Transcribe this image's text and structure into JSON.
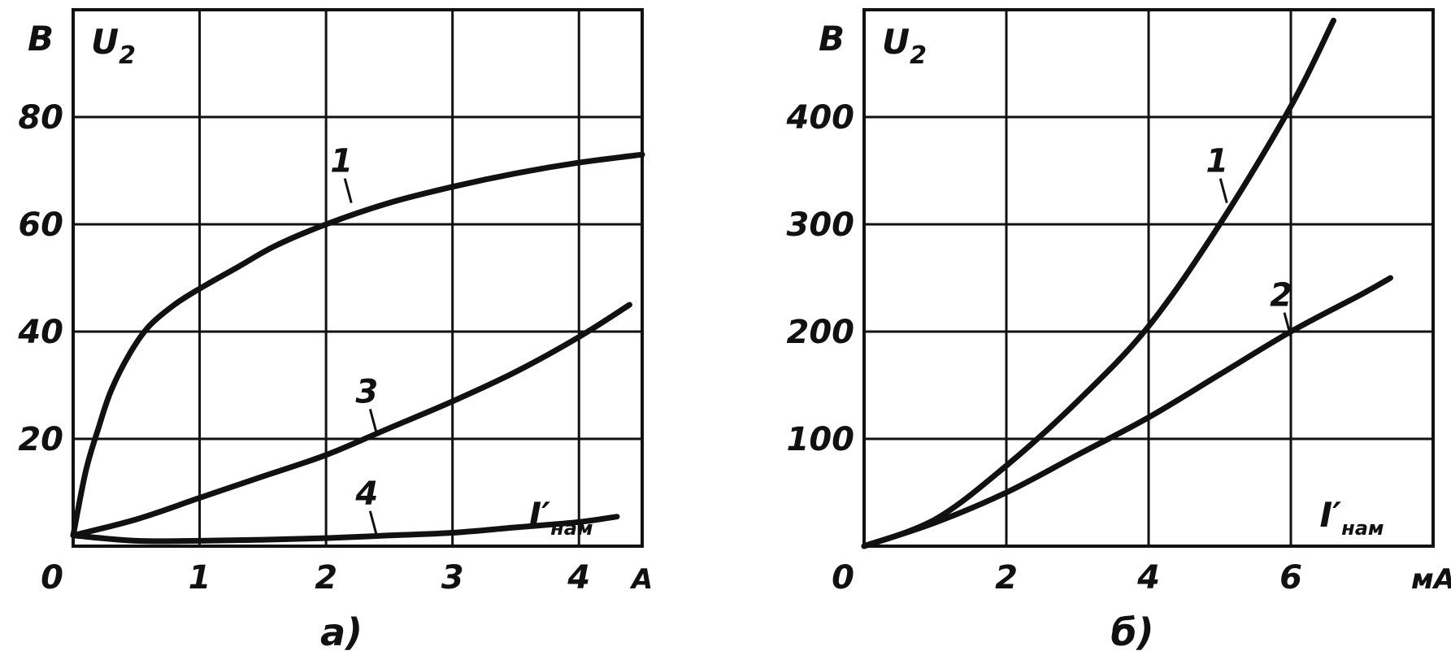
{
  "chart_data": [
    {
      "type": "line",
      "panel_label": "a)",
      "y_unit": "В",
      "y_symbol": "U",
      "y_symbol_sub": "2",
      "x_unit": "А",
      "x_symbol": "I′",
      "x_symbol_sub": "нам",
      "origin_label": "0",
      "xlim": [
        0,
        4.5
      ],
      "ylim": [
        0,
        100
      ],
      "x_ticks": [
        1,
        2,
        3,
        4
      ],
      "x_tick_labels": [
        "1",
        "2",
        "3",
        "4"
      ],
      "y_ticks": [
        20,
        40,
        60,
        80
      ],
      "y_tick_labels": [
        "20",
        "40",
        "60",
        "80"
      ],
      "grid": true,
      "series": [
        {
          "name": "1",
          "x": [
            0,
            0.1,
            0.2,
            0.3,
            0.45,
            0.6,
            0.8,
            1.0,
            1.3,
            1.6,
            2.0,
            2.5,
            3.0,
            3.5,
            4.0,
            4.5
          ],
          "y": [
            2,
            14,
            22,
            29,
            36,
            41,
            45,
            48,
            52,
            56,
            60,
            64,
            67,
            69.5,
            71.5,
            73
          ],
          "label_at": [
            2.2,
            64
          ]
        },
        {
          "name": "3",
          "x": [
            0,
            0.5,
            1.0,
            1.5,
            2.0,
            2.5,
            3.0,
            3.5,
            4.0,
            4.4
          ],
          "y": [
            2,
            5,
            9,
            13,
            17,
            22,
            27,
            32.5,
            39,
            45
          ],
          "label_at": [
            2.4,
            21
          ]
        },
        {
          "name": "4",
          "x": [
            0,
            0.5,
            1.0,
            1.5,
            2.0,
            2.5,
            3.0,
            3.5,
            4.0,
            4.3
          ],
          "y": [
            2,
            1,
            1,
            1.2,
            1.5,
            2,
            2.5,
            3.5,
            4.5,
            5.5
          ],
          "label_at": [
            2.4,
            2
          ]
        }
      ]
    },
    {
      "type": "line",
      "panel_label": "б)",
      "y_unit": "В",
      "y_symbol": "U",
      "y_symbol_sub": "2",
      "x_unit": "мА",
      "x_symbol": "I′",
      "x_symbol_sub": "нам",
      "origin_label": "0",
      "xlim": [
        0,
        8
      ],
      "ylim": [
        0,
        500
      ],
      "x_ticks": [
        2,
        4,
        6
      ],
      "x_tick_labels": [
        "2",
        "4",
        "6"
      ],
      "y_ticks": [
        100,
        200,
        300,
        400
      ],
      "y_tick_labels": [
        "100",
        "200",
        "300",
        "400"
      ],
      "grid": true,
      "series": [
        {
          "name": "1",
          "x": [
            0,
            1,
            2,
            3,
            4,
            5,
            6,
            6.6
          ],
          "y": [
            0,
            25,
            75,
            135,
            205,
            300,
            410,
            490
          ],
          "label_at": [
            5.1,
            320
          ]
        },
        {
          "name": "2",
          "x": [
            0,
            1,
            2,
            3,
            4,
            5,
            6,
            7,
            7.4
          ],
          "y": [
            0,
            22,
            50,
            85,
            120,
            160,
            200,
            235,
            250
          ],
          "label_at": [
            6.0,
            195
          ]
        }
      ]
    }
  ]
}
